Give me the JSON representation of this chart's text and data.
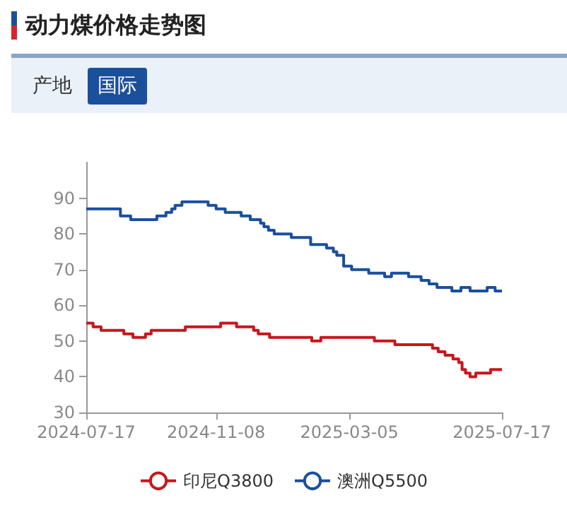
{
  "chart_data": {
    "type": "step",
    "title": "动力煤价格走势图",
    "annotations": [
      "产地",
      "国际"
    ],
    "xlim": [
      "2024-07-17",
      "2025-07-17"
    ],
    "xticks": [
      "2024-07-17",
      "2024-11-08",
      "2025-03-05",
      "2025-07-17"
    ],
    "ylim": [
      30,
      100
    ],
    "yticks": [
      30,
      40,
      50,
      60,
      70,
      80,
      90
    ],
    "legend": "bottom",
    "series": [
      {
        "name": "印尼Q3800",
        "color": "#c8161d",
        "x": [
          "2024-07-17",
          "2024-07-23",
          "2024-07-30",
          "2024-08-19",
          "2024-08-27",
          "2024-09-07",
          "2024-09-12",
          "2024-10-12",
          "2024-11-12",
          "2024-11-26",
          "2024-12-11",
          "2024-12-15",
          "2024-12-25",
          "2025-01-31",
          "2025-02-08",
          "2025-03-27",
          "2025-04-14",
          "2025-05-17",
          "2025-05-22",
          "2025-05-28",
          "2025-06-04",
          "2025-06-09",
          "2025-06-12",
          "2025-06-15",
          "2025-06-19",
          "2025-06-24",
          "2025-07-07",
          "2025-07-17"
        ],
        "values": [
          55,
          54,
          53,
          52,
          51,
          52,
          53,
          54,
          55,
          54,
          53,
          52,
          51,
          50,
          51,
          50,
          49,
          48,
          47,
          46,
          45,
          44,
          42,
          41,
          40,
          41,
          42,
          42
        ]
      },
      {
        "name": "澳洲Q5500",
        "color": "#1a4f9c",
        "x": [
          "2024-07-17",
          "2024-08-16",
          "2024-08-25",
          "2024-09-17",
          "2024-09-25",
          "2024-09-30",
          "2024-10-03",
          "2024-10-09",
          "2024-11-01",
          "2024-11-08",
          "2024-11-16",
          "2024-11-30",
          "2024-12-08",
          "2024-12-17",
          "2024-12-20",
          "2024-12-24",
          "2024-12-29",
          "2025-01-13",
          "2025-01-30",
          "2025-02-13",
          "2025-02-19",
          "2025-02-22",
          "2025-02-28",
          "2025-03-07",
          "2025-03-22",
          "2025-04-05",
          "2025-04-11",
          "2025-04-26",
          "2025-05-07",
          "2025-05-14",
          "2025-05-21",
          "2025-06-03",
          "2025-06-11",
          "2025-06-19",
          "2025-07-04",
          "2025-07-11",
          "2025-07-17"
        ],
        "values": [
          87,
          85,
          84,
          85,
          86,
          87,
          88,
          89,
          88,
          87,
          86,
          85,
          84,
          83,
          82,
          81,
          80,
          79,
          77,
          76,
          75,
          74,
          71,
          70,
          69,
          68,
          69,
          68,
          67,
          66,
          65,
          64,
          65,
          64,
          65,
          64,
          64
        ]
      }
    ]
  }
}
